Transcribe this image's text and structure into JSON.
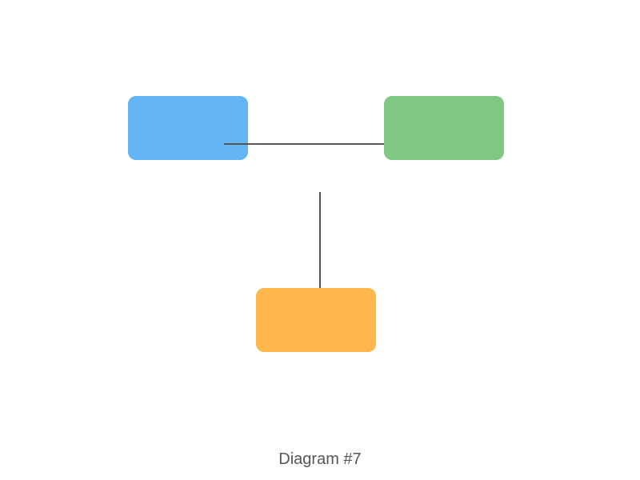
{
  "diagram": {
    "caption": "Diagram #7",
    "nodes": [
      {
        "id": "blue",
        "color": "#64b5f6"
      },
      {
        "id": "green",
        "color": "#81c784"
      },
      {
        "id": "orange",
        "color": "#ffb74d"
      }
    ],
    "connector_color": "#555555"
  }
}
